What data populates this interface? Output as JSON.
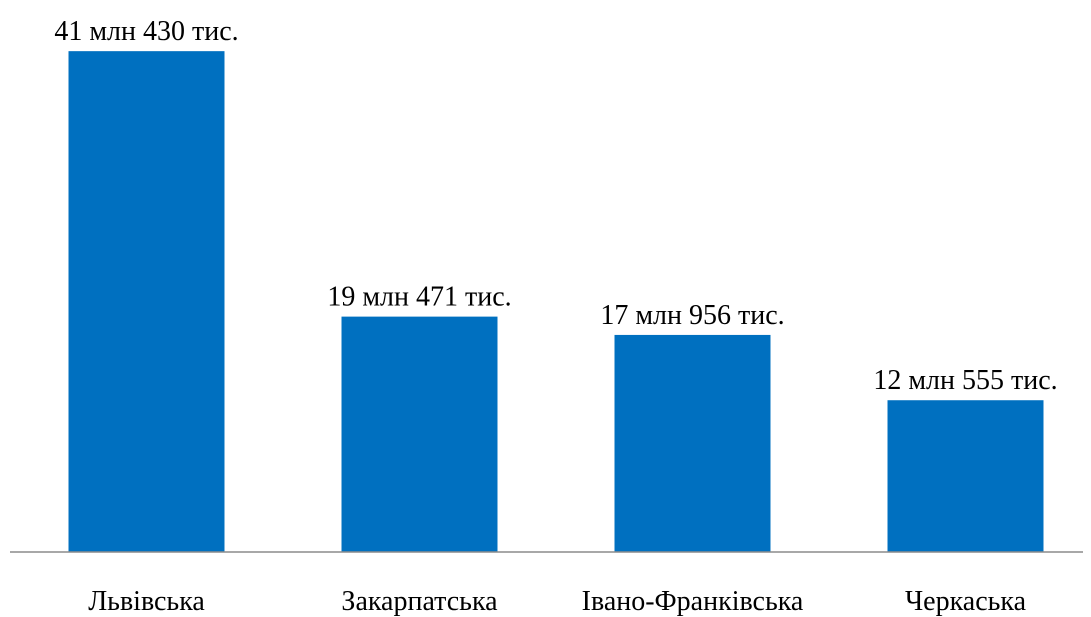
{
  "chart_data": {
    "type": "bar",
    "categories": [
      "Львівська",
      "Закарпатська",
      "Івано-Франківська",
      "Черкаська"
    ],
    "values": [
      41430,
      19471,
      17956,
      12555
    ],
    "value_unit": "тис.",
    "data_labels": [
      "41 млн 430 тис.",
      "19 млн 471 тис.",
      "17 млн 956 тис.",
      "12 млн 555 тис."
    ],
    "ylim": [
      0,
      45000
    ],
    "grid": false,
    "legend": "none",
    "title": "",
    "xlabel": "",
    "ylabel": "",
    "bar_color": "#0070C0",
    "axis_color": "#8C8C8C"
  }
}
